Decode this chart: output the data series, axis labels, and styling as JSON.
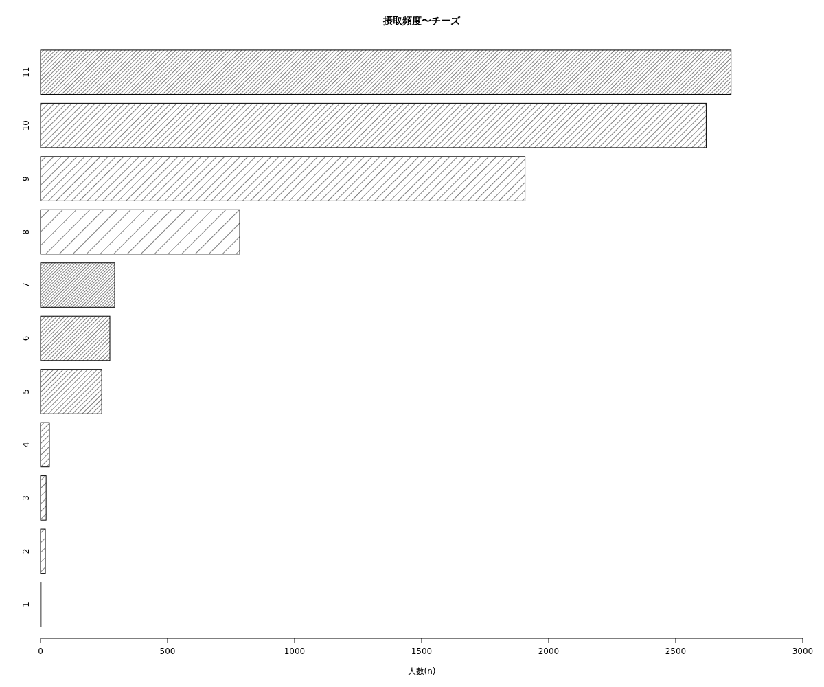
{
  "chart_data": {
    "type": "bar",
    "orientation": "horizontal",
    "title": "摂取頻度〜チーズ",
    "xlabel": "人数(n)",
    "categories": [
      "11",
      "10",
      "9",
      "8",
      "7",
      "6",
      "5",
      "4",
      "3",
      "2",
      "1"
    ],
    "values": [
      2718,
      2620,
      1907,
      784,
      292,
      273,
      241,
      35,
      22,
      19,
      1
    ],
    "color": "#000000",
    "xlim": [
      0,
      3000
    ],
    "xticks": [
      0,
      500,
      1000,
      1500,
      2000,
      2500,
      3000
    ]
  }
}
